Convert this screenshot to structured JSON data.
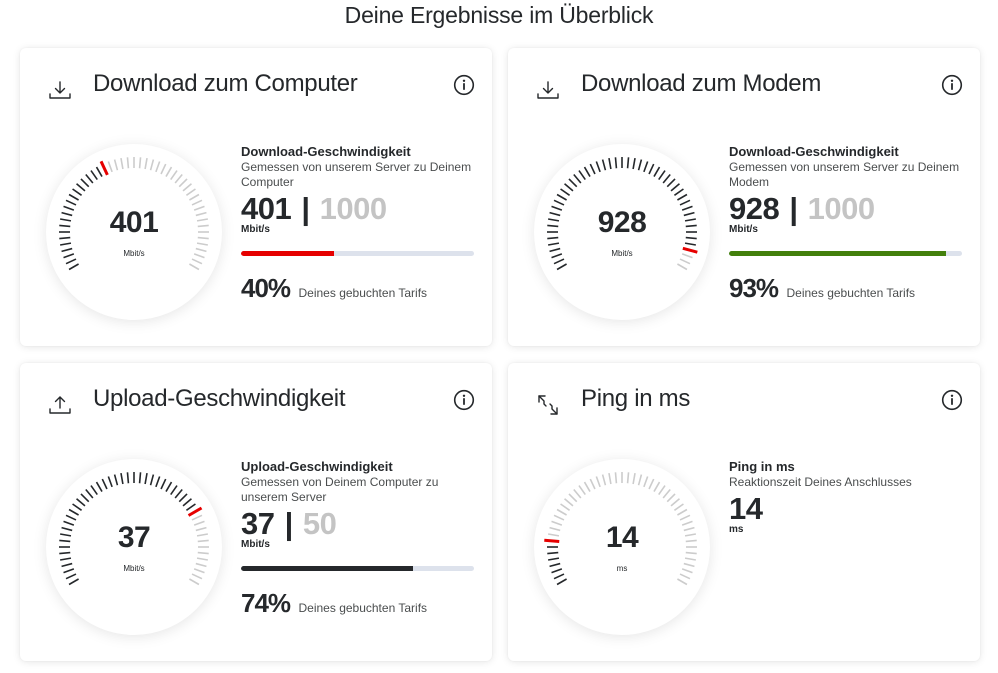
{
  "page": {
    "title": "Deine Ergebnisse im Überblick"
  },
  "colors": {
    "accent_red": "#e60000",
    "success_green": "#43800c",
    "dark": "#25282b",
    "track": "#dde2ec",
    "max_gray": "#c4c4c4",
    "tick_active": "#25282b",
    "tick_inactive": "#cccccc"
  },
  "cards": [
    {
      "id": "download-computer",
      "icon": "download-icon",
      "title": "Download zum Computer",
      "info_icon": "info-icon",
      "gauge": {
        "value": "401",
        "unit": "Mbit/s",
        "fraction": 0.401,
        "active_side": "before"
      },
      "details": {
        "title": "Download-Geschwindigkeit",
        "description": "Gemessen von unserem Server zu Deinem Computer",
        "value": "401",
        "separator": "|",
        "max": "1000",
        "unit": "Mbit/s",
        "progress_percent": 40,
        "progress_color": "#e60000",
        "percent_text": "40%",
        "percent_label": "Deines gebuchten Tarifs"
      }
    },
    {
      "id": "download-modem",
      "icon": "download-icon",
      "title": "Download zum Modem",
      "info_icon": "info-icon",
      "gauge": {
        "value": "928",
        "unit": "Mbit/s",
        "fraction": 0.928,
        "active_side": "before"
      },
      "details": {
        "title": "Download-Geschwindigkeit",
        "description": "Gemessen von unserem Server zu Deinem Modem",
        "value": "928",
        "separator": "|",
        "max": "1000",
        "unit": "Mbit/s",
        "progress_percent": 93,
        "progress_color": "#43800c",
        "percent_text": "93%",
        "percent_label": "Deines gebuchten Tarifs"
      }
    },
    {
      "id": "upload",
      "icon": "upload-icon",
      "title": "Upload-Geschwindigkeit",
      "info_icon": "info-icon",
      "gauge": {
        "value": "37",
        "unit": "Mbit/s",
        "fraction": 0.74,
        "active_side": "before"
      },
      "details": {
        "title": "Upload-Geschwindigkeit",
        "description": "Gemessen von Deinem Computer zu unserem Server",
        "value": "37",
        "separator": "|",
        "max": "50",
        "unit": "Mbit/s",
        "progress_percent": 74,
        "progress_color": "#25282b",
        "percent_text": "74%",
        "percent_label": "Deines gebuchten Tarifs"
      }
    },
    {
      "id": "ping",
      "icon": "ping-arrows-icon",
      "title": "Ping in ms",
      "info_icon": "info-icon",
      "gauge": {
        "value": "14",
        "unit": "ms",
        "fraction": 0.14,
        "active_side": "before"
      },
      "details": {
        "title": "Ping in ms",
        "description": "Reaktionszeit Deines Anschlusses",
        "value": "14",
        "unit": "ms"
      }
    }
  ]
}
